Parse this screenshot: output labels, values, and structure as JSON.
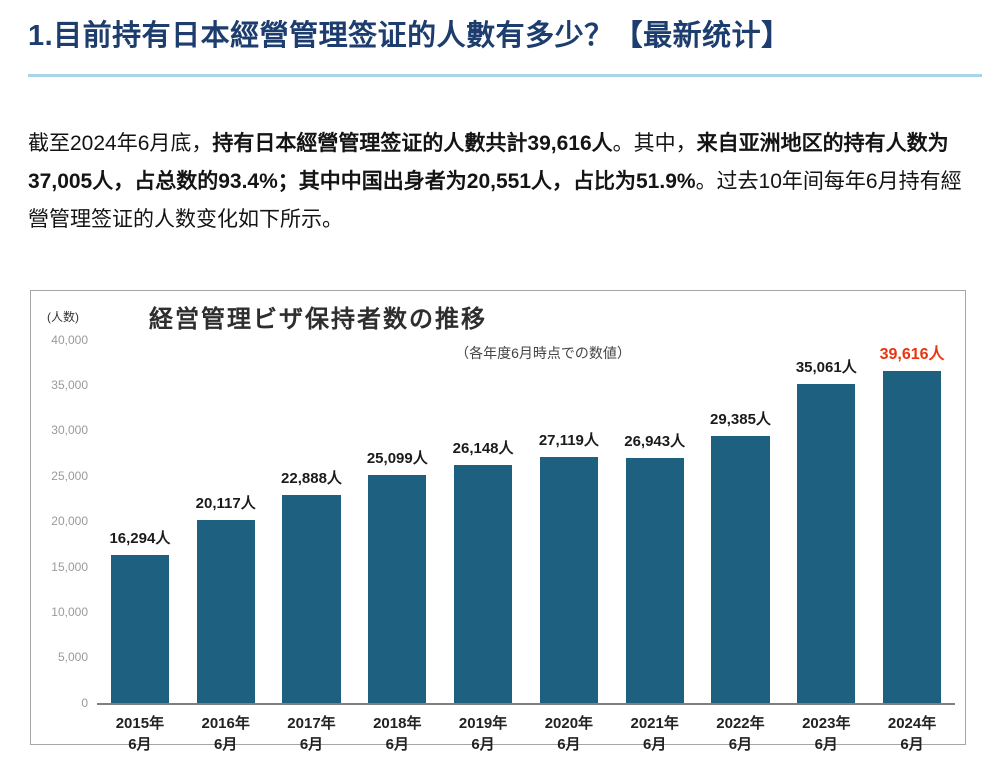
{
  "theme": {
    "heading_color": "#1d3d6e",
    "divider_color": "#a8d4ea",
    "bar_color": "#1e6080",
    "highlight_color": "#e8350e"
  },
  "page": {
    "title": "1.目前持有日本經營管理签证的人數有多少？【最新统计】"
  },
  "intro": {
    "segments": [
      {
        "text": "截至2024年6月底，",
        "bold": false
      },
      {
        "text": "持有日本經營管理签证的人數共計39,616人",
        "bold": true
      },
      {
        "text": "。其中，",
        "bold": false
      },
      {
        "text": "来自亚洲地区的持有人数为37,005人，占总数的93.4%；其中中国出身者为20,551人，占比为51.9%",
        "bold": true
      },
      {
        "text": "。过去10年间每年6月持有經營管理签证的人数变化如下所示。",
        "bold": false
      }
    ]
  },
  "chart_data": {
    "type": "bar",
    "title": "経営管理ビザ保持者数の推移",
    "subtitle": "（各年度6月時点での数値）",
    "y_axis_unit": "(人数)",
    "categories": [
      "2015年6月",
      "2016年6月",
      "2017年6月",
      "2018年6月",
      "2019年6月",
      "2020年6月",
      "2021年6月",
      "2022年6月",
      "2023年6月",
      "2024年6月"
    ],
    "category_lines": [
      [
        "2015年",
        "6月"
      ],
      [
        "2016年",
        "6月"
      ],
      [
        "2017年",
        "6月"
      ],
      [
        "2018年",
        "6月"
      ],
      [
        "2019年",
        "6月"
      ],
      [
        "2020年",
        "6月"
      ],
      [
        "2021年",
        "6月"
      ],
      [
        "2022年",
        "6月"
      ],
      [
        "2023年",
        "6月"
      ],
      [
        "2024年",
        "6月"
      ]
    ],
    "values": [
      16294,
      20117,
      22888,
      25099,
      26148,
      27119,
      26943,
      29385,
      35061,
      39616
    ],
    "value_labels": [
      "16,294人",
      "20,117人",
      "22,888人",
      "25,099人",
      "26,148人",
      "27,119人",
      "26,943人",
      "29,385人",
      "35,061人",
      "39,616人"
    ],
    "highlight_last": true,
    "ylim": [
      0,
      40000
    ],
    "yticks": [
      0,
      5000,
      10000,
      15000,
      20000,
      25000,
      30000,
      35000,
      40000
    ],
    "ytick_labels": [
      "0",
      "5,000",
      "10,000",
      "15,000",
      "20,000",
      "25,000",
      "30,000",
      "35,000",
      "40,000"
    ],
    "grid": false,
    "legend": false
  }
}
